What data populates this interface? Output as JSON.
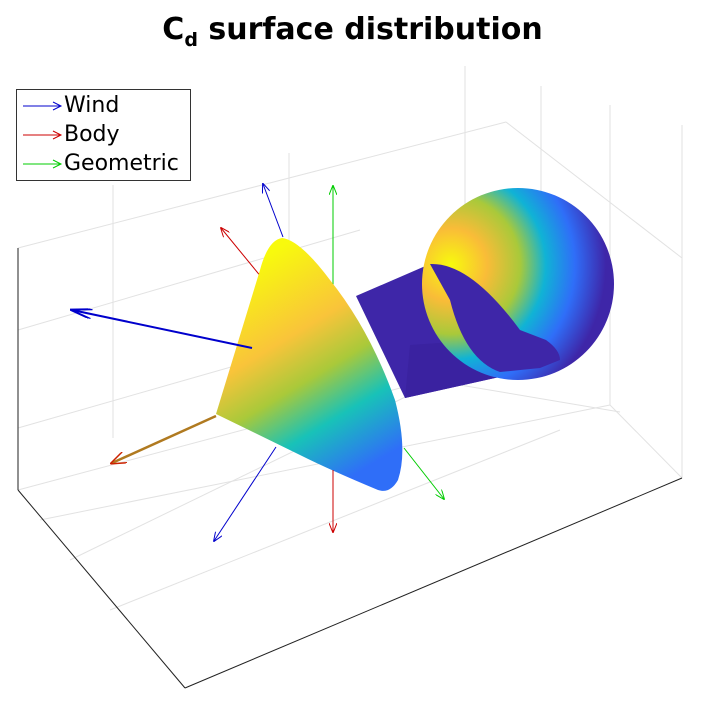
{
  "title": {
    "main": "C",
    "subscript": "d",
    "rest": " surface distribution"
  },
  "legend": [
    {
      "label": "Wind",
      "color": "#0000cc"
    },
    {
      "label": "Body",
      "color": "#cc0000"
    },
    {
      "label": "Geometric",
      "color": "#00cc00"
    }
  ],
  "colors": {
    "colormap": [
      "#3e26a8",
      "#2f6ef8",
      "#10b3d5",
      "#2bd089",
      "#a9c93a",
      "#f9bc38",
      "#f8fa0d"
    ],
    "low": "#3e26a8",
    "high": "#f8fa0d"
  }
}
